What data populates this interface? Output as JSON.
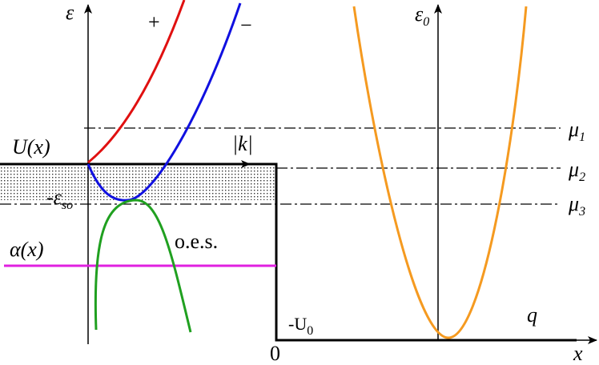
{
  "axes": {
    "energy": "ε",
    "energy_0": {
      "symbol": "ε",
      "sub": "0"
    },
    "k": "|k|",
    "x": "x",
    "q": "q",
    "origin": "0"
  },
  "branches": {
    "plus": "+",
    "minus": "−"
  },
  "levels": [
    {
      "symbol": "μ",
      "sub": "1"
    },
    {
      "symbol": "μ",
      "sub": "2"
    },
    {
      "symbol": "μ",
      "sub": "3"
    }
  ],
  "potential": "U(x)",
  "spin_orbit": {
    "prefix": "-",
    "symbol": "ε",
    "sub": "so"
  },
  "alpha": "α(x)",
  "oes": "o.e.s.",
  "well_depth": {
    "symbol": "-U",
    "sub": "0"
  }
}
